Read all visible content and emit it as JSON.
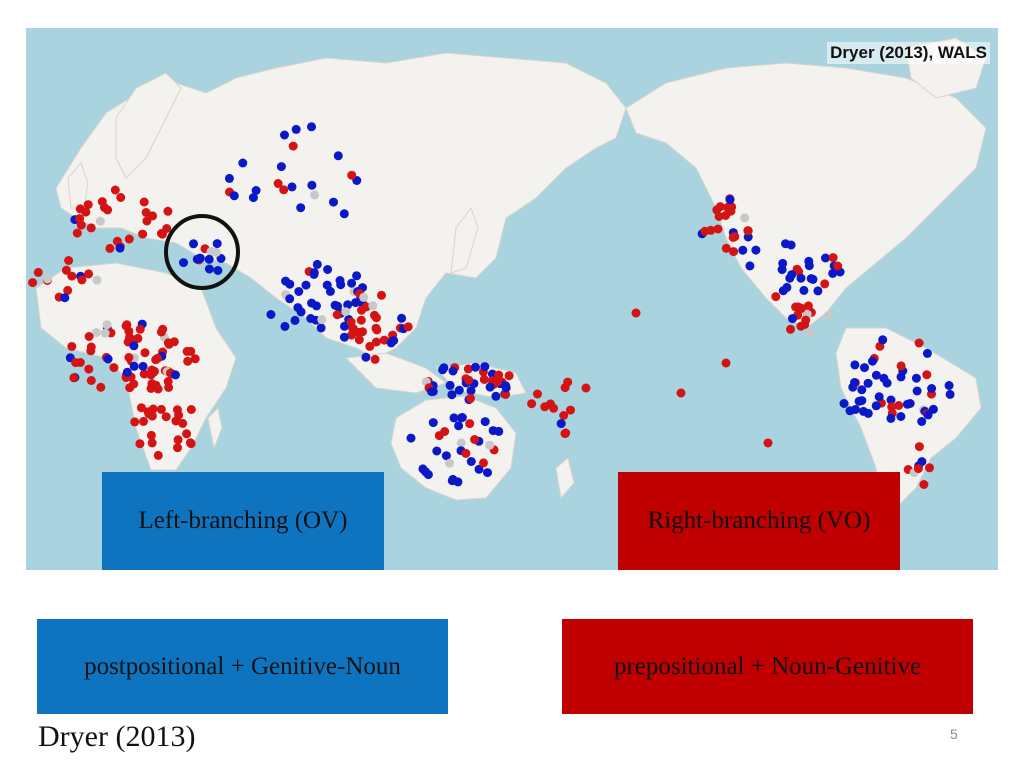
{
  "map": {
    "source": "Dryer (2013), WALS",
    "legend_left": "Left-branching (OV)",
    "legend_right": "Right-branching (VO)",
    "colors": {
      "ocean": "#a9d3df",
      "land": "#f4f2ee",
      "ov": "#0a18c8",
      "vo": "#d41414",
      "other": "#c8c8c8"
    }
  },
  "bottom": {
    "left_label": "postpositional + Genitive-Noun",
    "right_label": "prepositional + Noun-Genitive",
    "colors": {
      "left": "#0e74c0",
      "right": "#c00000"
    }
  },
  "footer": {
    "citation": "Dryer (2013)",
    "page_number": "5"
  }
}
